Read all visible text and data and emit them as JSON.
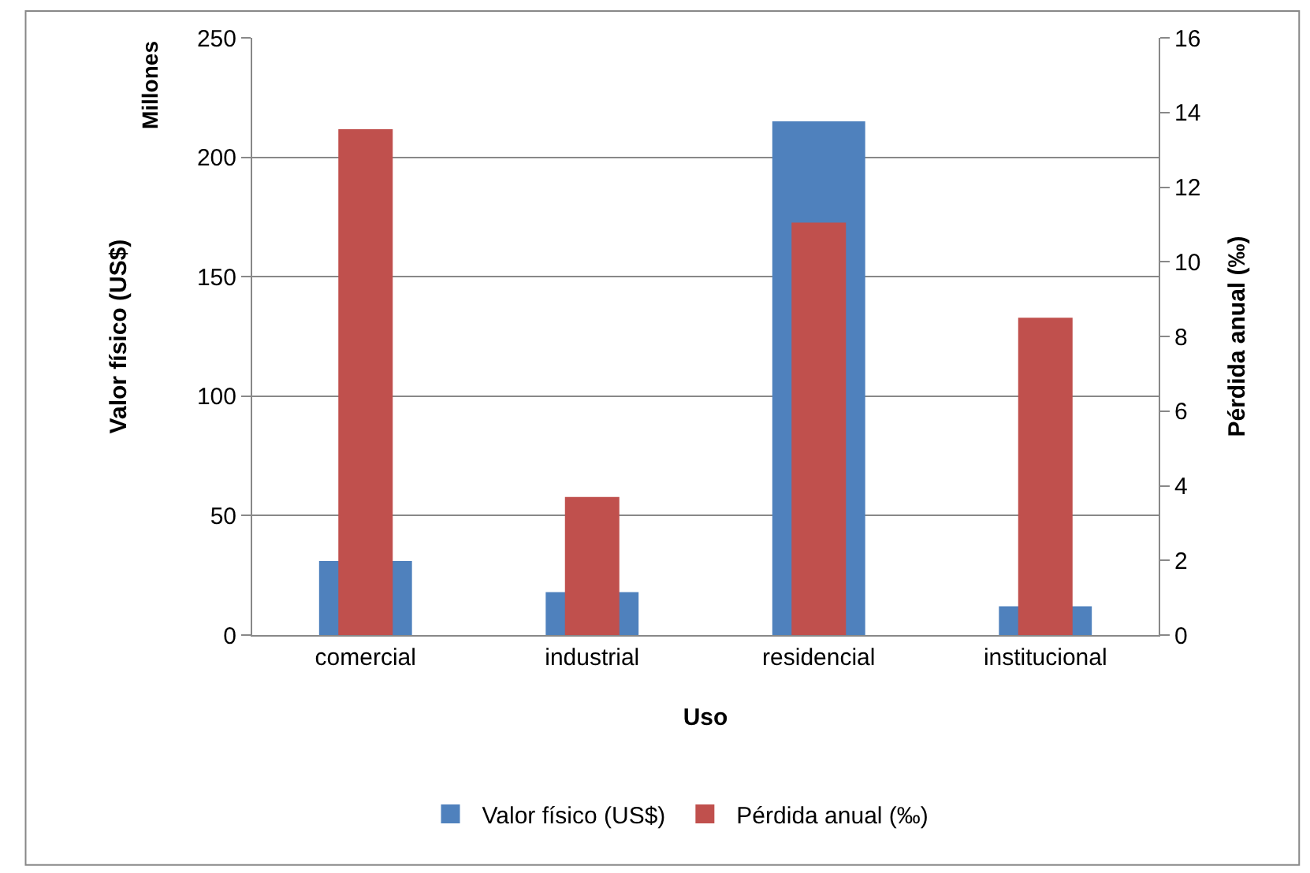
{
  "chart_data": {
    "type": "bar",
    "categories": [
      "comercial",
      "industrial",
      "residencial",
      "institucional"
    ],
    "series": [
      {
        "name": "Valor físico (US$)",
        "color": "#4f81bd",
        "values": [
          31,
          18,
          215,
          12
        ]
      },
      {
        "name": "Pérdida anual (‰)",
        "color": "#c0504d",
        "values": [
          13.55,
          3.7,
          11.05,
          8.5
        ],
        "axis": "y2"
      }
    ],
    "xlabel": "Uso",
    "ylabel": "Valor físico (US$)",
    "y2label": "Pérdida anual (‰)",
    "annotations": [
      "Millones"
    ],
    "ylim": [
      0,
      250
    ],
    "yticks": [
      0,
      50,
      100,
      150,
      200,
      250
    ],
    "y2lim": [
      0,
      16
    ],
    "y2ticks": [
      0,
      2,
      4,
      6,
      8,
      10,
      12,
      14,
      16
    ],
    "grid": "y",
    "legend": "bottom"
  }
}
